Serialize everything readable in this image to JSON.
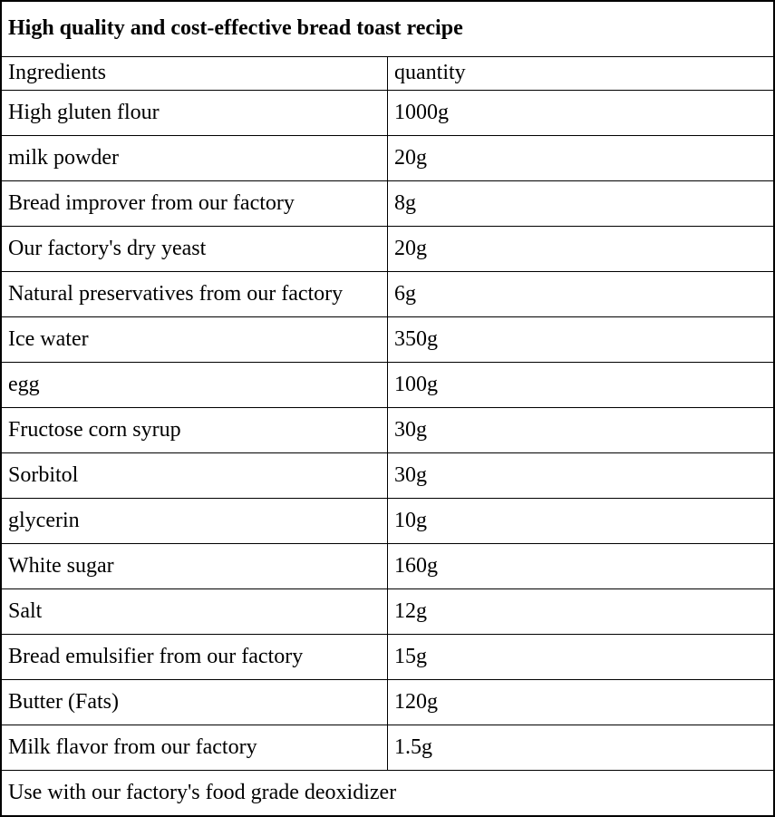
{
  "table": {
    "title": "High quality and cost-effective bread toast recipe",
    "headers": {
      "ingredient": "Ingredients",
      "quantity": "quantity"
    },
    "rows": [
      {
        "ingredient": "High gluten flour",
        "quantity": "1000g"
      },
      {
        "ingredient": "milk powder",
        "quantity": "20g"
      },
      {
        "ingredient": "Bread improver from our factory",
        "quantity": "8g"
      },
      {
        "ingredient": "Our factory's dry yeast",
        "quantity": "20g"
      },
      {
        "ingredient": "Natural preservatives from our factory",
        "quantity": "6g"
      },
      {
        "ingredient": "Ice water",
        "quantity": "350g"
      },
      {
        "ingredient": "egg",
        "quantity": "100g"
      },
      {
        "ingredient": "Fructose corn syrup",
        "quantity": "30g"
      },
      {
        "ingredient": "Sorbitol",
        "quantity": "30g"
      },
      {
        "ingredient": "glycerin",
        "quantity": "10g"
      },
      {
        "ingredient": "White sugar",
        "quantity": "160g"
      },
      {
        "ingredient": "Salt",
        "quantity": "12g"
      },
      {
        "ingredient": "Bread emulsifier from our factory",
        "quantity": "15g"
      },
      {
        "ingredient": "Butter (Fats)",
        "quantity": "120g"
      },
      {
        "ingredient": "Milk flavor from our factory",
        "quantity": "1.5g"
      }
    ],
    "footer": "Use with our factory's food grade deoxidizer"
  },
  "colors": {
    "border": "#000000",
    "background": "#ffffff",
    "text": "#000000"
  }
}
